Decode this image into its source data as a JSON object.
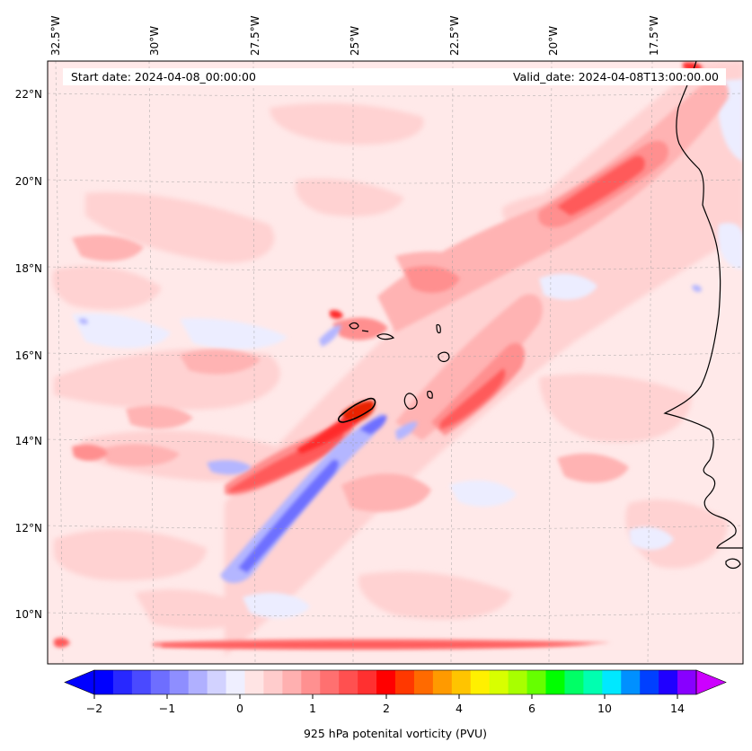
{
  "map": {
    "title_left": "Start date: 2024-04-08_00:00:00",
    "title_right": "Valid_date: 2024-04-08T13:00:00.00",
    "lon_labels": [
      "32.5°W",
      "30°W",
      "27.5°W",
      "25°W",
      "22.5°W",
      "20°W",
      "17.5°W"
    ],
    "lat_labels": [
      "22°N",
      "20°N",
      "18°N",
      "16°N",
      "14°N",
      "12°N",
      "10°N"
    ],
    "colors": {
      "background": "#ffe9e9",
      "light_pink": "#ffd2d2",
      "pink": "#ffb3b3",
      "salmon": "#ff8f8f",
      "red": "#ff5a5a",
      "strong_red": "#ff2a2a",
      "dark_red": "#e82000",
      "light_blue": "#ecedff",
      "blue": "#b4b6ff",
      "deep_blue": "#6e70ff",
      "coast": "#000000"
    }
  },
  "colorbar": {
    "label": "925 hPa potenital vorticity (PVU)",
    "tick_labels": [
      "−2",
      "−1",
      "0",
      "1",
      "2",
      "4",
      "6",
      "10",
      "14"
    ],
    "colors": [
      "#0000ff",
      "#2828ff",
      "#4a4aff",
      "#6e6eff",
      "#8e8eff",
      "#b0b0ff",
      "#d2d2ff",
      "#efefff",
      "#ffe4e4",
      "#ffcccc",
      "#ffb0b0",
      "#ff9090",
      "#ff7070",
      "#ff5050",
      "#ff3030",
      "#ff0000",
      "#ff3800",
      "#ff6a00",
      "#ff9a00",
      "#ffc400",
      "#fff000",
      "#d8ff00",
      "#a8ff00",
      "#66ff00",
      "#00ff00",
      "#00ff66",
      "#00ffb0",
      "#00e8ff",
      "#0090ff",
      "#0040ff",
      "#2000ff",
      "#8800ff"
    ],
    "under_color": "#0000ff",
    "over_color": "#cc00ff"
  }
}
